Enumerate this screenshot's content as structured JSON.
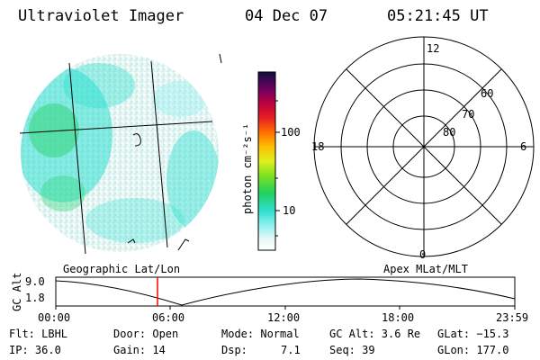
{
  "header": {
    "instrument": "Ultraviolet Imager",
    "date": "04 Dec 07",
    "time": "05:21:45 UT"
  },
  "colorbar": {
    "unit_label": "photon cm⁻²s⁻¹",
    "ticks": [
      "100",
      "10"
    ],
    "scale": "log"
  },
  "polar_plot": {
    "mlt_labels": [
      "12",
      "18",
      "6",
      "0"
    ],
    "lat_labels": [
      "60",
      "70",
      "80"
    ]
  },
  "panel_labels": {
    "left": "Geographic Lat/Lon",
    "right": "Apex MLat/MLT"
  },
  "altitude_strip": {
    "y_label": "GC Alt",
    "y_ticks": [
      "9.0",
      "1.8"
    ],
    "x_ticks": [
      "00:00",
      "06:00",
      "12:00",
      "18:00",
      "23:59"
    ],
    "current_marker_time": "05:21:45",
    "marker_color": "#ff0000"
  },
  "footer": {
    "row1": {
      "flt": "Flt: LBHL",
      "door": "Door: Open",
      "mode": "Mode: Normal",
      "gcalt": "GC Alt: 3.6 Re",
      "glat": "GLat: −15.3"
    },
    "row2": {
      "ip": "IP: 36.0",
      "gain": "Gain: 14",
      "dsp_label": "Dsp:",
      "dsp_value": "7.1",
      "seq": "Seq: 39",
      "glon": "GLon: 177.0"
    }
  },
  "colors": {
    "aurora_cyan": "#2ee0d0",
    "aurora_green": "#34d67a",
    "background": "#ffffff"
  }
}
